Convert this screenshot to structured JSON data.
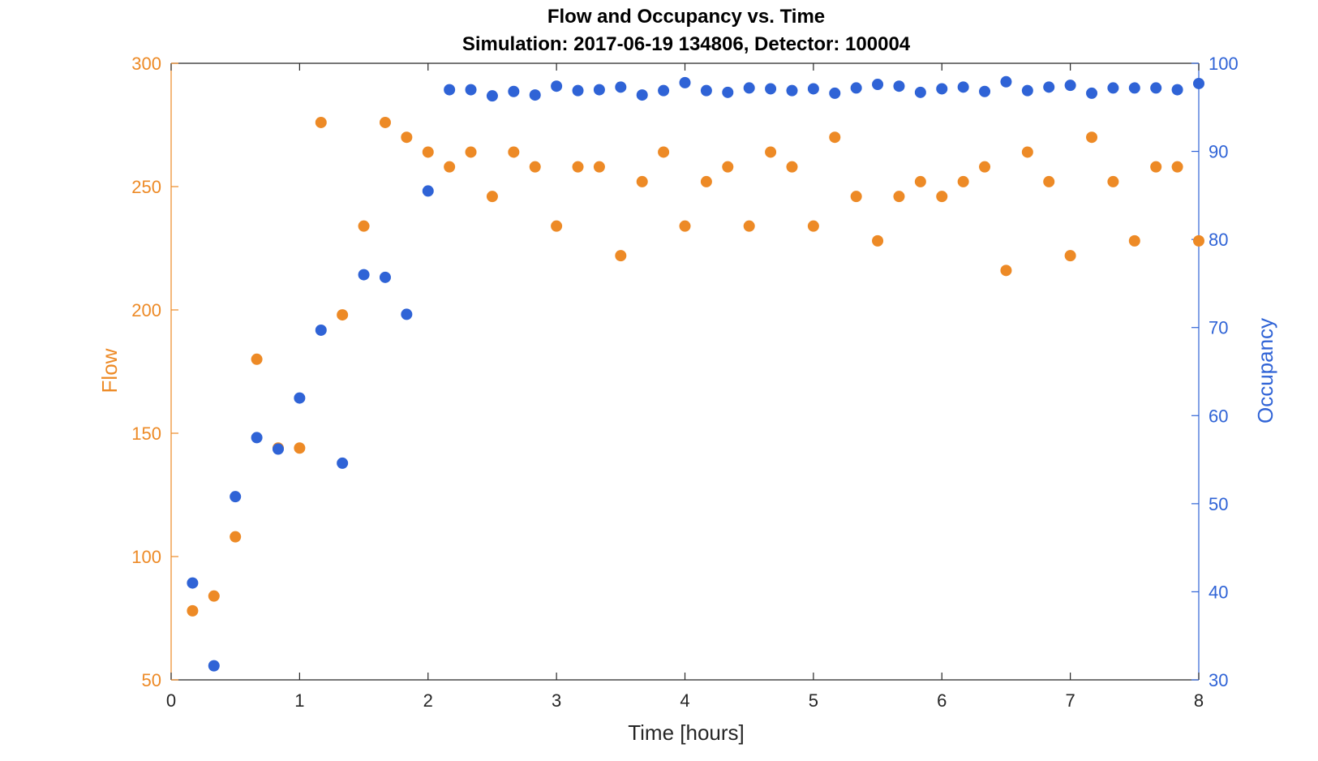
{
  "colors": {
    "flow": "#ED8A26",
    "occupancy": "#2F63D6",
    "x_axis": "#262626",
    "box": "#262626"
  },
  "chart_data": {
    "type": "scatter",
    "title": "Flow and Occupancy vs. Time",
    "subtitle": "Simulation:  2017-06-19 134806,  Detector:  100004",
    "xlabel": "Time [hours]",
    "xlim": [
      0,
      8
    ],
    "xticks": [
      "0",
      "1",
      "2",
      "3",
      "4",
      "5",
      "6",
      "7",
      "8"
    ],
    "y_left": {
      "label": "Flow",
      "lim": [
        50,
        300
      ],
      "ticks": [
        "50",
        "100",
        "150",
        "200",
        "250",
        "300"
      ]
    },
    "y_right": {
      "label": "Occupancy",
      "lim": [
        30,
        100
      ],
      "ticks": [
        "30",
        "40",
        "50",
        "60",
        "70",
        "80",
        "90",
        "100"
      ]
    },
    "grid": false,
    "legend": "none",
    "x": [
      0.1667,
      0.3333,
      0.5,
      0.6667,
      0.8333,
      1.0,
      1.1667,
      1.3333,
      1.5,
      1.6667,
      1.8333,
      2.0,
      2.1667,
      2.3333,
      2.5,
      2.6667,
      2.8333,
      3.0,
      3.1667,
      3.3333,
      3.5,
      3.6667,
      3.8333,
      4.0,
      4.1667,
      4.3333,
      4.5,
      4.6667,
      4.8333,
      5.0,
      5.1667,
      5.3333,
      5.5,
      5.6667,
      5.8333,
      6.0,
      6.1667,
      6.3333,
      6.5,
      6.6667,
      6.8333,
      7.0,
      7.1667,
      7.3333,
      7.5,
      7.6667,
      7.8333,
      8.0
    ],
    "series": [
      {
        "axis": "left",
        "values": [
          78,
          84,
          108,
          180,
          144,
          144,
          276,
          198,
          234,
          276,
          270,
          264,
          258,
          264,
          246,
          264,
          258,
          234,
          258,
          258,
          222,
          252,
          264,
          234,
          252,
          258,
          234,
          264,
          258,
          234,
          270,
          246,
          228,
          246,
          252,
          246,
          252,
          258,
          216,
          264,
          252,
          222,
          270,
          252,
          228,
          258,
          258,
          228
        ]
      },
      {
        "axis": "right",
        "values": [
          41.0,
          31.6,
          50.8,
          57.5,
          56.2,
          62.0,
          69.7,
          54.6,
          76.0,
          75.7,
          71.5,
          85.5,
          97.0,
          97.0,
          96.3,
          96.8,
          96.4,
          97.4,
          96.9,
          97.0,
          97.3,
          96.4,
          96.9,
          97.8,
          96.9,
          96.7,
          97.2,
          97.1,
          96.9,
          97.1,
          96.6,
          97.2,
          97.6,
          97.4,
          96.7,
          97.1,
          97.3,
          96.8,
          97.9,
          96.9,
          97.3,
          97.5,
          96.6,
          97.2,
          97.2,
          97.2,
          97.0,
          97.7
        ]
      }
    ]
  }
}
